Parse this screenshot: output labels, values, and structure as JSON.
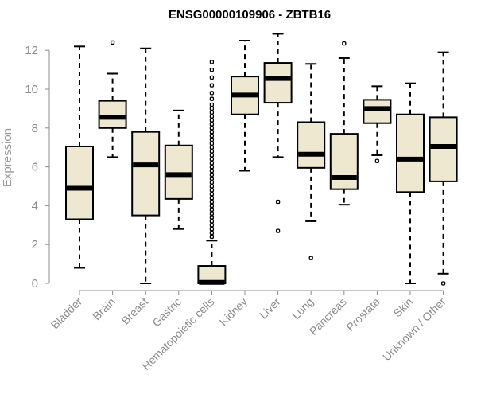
{
  "chart_data": {
    "type": "boxplot",
    "title": "ENSG00000109906 - ZBTB16",
    "xlabel": "",
    "ylabel": "Expression",
    "ylim": [
      0,
      12.5
    ],
    "yticks": [
      0,
      2,
      4,
      6,
      8,
      10,
      12
    ],
    "categories": [
      "Bladder",
      "Brain",
      "Breast",
      "Gastric",
      "Hematopoietic cells",
      "Kidney",
      "Liver",
      "Lung",
      "Pancreas",
      "Prostate",
      "Skin",
      "Unknown / Other"
    ],
    "series": [
      {
        "name": "Bladder",
        "min": 0.8,
        "q1": 3.3,
        "median": 4.9,
        "q3": 7.05,
        "max": 12.2,
        "outliers": []
      },
      {
        "name": "Brain",
        "min": 6.5,
        "q1": 8.0,
        "median": 8.55,
        "q3": 9.4,
        "max": 10.8,
        "outliers": [
          12.4
        ]
      },
      {
        "name": "Breast",
        "min": 0.0,
        "q1": 3.5,
        "median": 6.1,
        "q3": 7.8,
        "max": 12.1,
        "outliers": []
      },
      {
        "name": "Gastric",
        "min": 2.8,
        "q1": 4.35,
        "median": 5.6,
        "q3": 7.1,
        "max": 8.9,
        "outliers": []
      },
      {
        "name": "Hematopoietic cells",
        "min": 0.0,
        "q1": 0.0,
        "median": 0.05,
        "q3": 0.9,
        "max": 2.2,
        "outliers": [
          2.4,
          2.6,
          2.8,
          3.0,
          3.2,
          3.4,
          3.6,
          3.8,
          4.0,
          4.2,
          4.4,
          4.6,
          4.8,
          5.0,
          5.2,
          5.4,
          5.6,
          5.8,
          6.0,
          6.2,
          6.4,
          6.6,
          6.8,
          7.0,
          7.2,
          7.4,
          7.6,
          7.8,
          8.0,
          8.2,
          8.4,
          8.6,
          8.8,
          9.0,
          9.2,
          9.5,
          9.8,
          10.2,
          10.6,
          11.0,
          11.4
        ]
      },
      {
        "name": "Kidney",
        "min": 5.8,
        "q1": 8.7,
        "median": 9.7,
        "q3": 10.65,
        "max": 12.5,
        "outliers": []
      },
      {
        "name": "Liver",
        "min": 6.5,
        "q1": 9.3,
        "median": 10.55,
        "q3": 11.35,
        "max": 12.85,
        "outliers": [
          4.2,
          2.7
        ]
      },
      {
        "name": "Lung",
        "min": 3.2,
        "q1": 5.95,
        "median": 6.65,
        "q3": 8.3,
        "max": 11.3,
        "outliers": [
          1.3
        ]
      },
      {
        "name": "Pancreas",
        "min": 4.05,
        "q1": 4.85,
        "median": 5.45,
        "q3": 7.7,
        "max": 11.6,
        "outliers": [
          12.35
        ]
      },
      {
        "name": "Prostate",
        "min": 6.6,
        "q1": 8.25,
        "median": 9.0,
        "q3": 9.45,
        "max": 10.15,
        "outliers": [
          6.3
        ]
      },
      {
        "name": "Skin",
        "min": 0.0,
        "q1": 4.7,
        "median": 6.4,
        "q3": 8.7,
        "max": 10.3,
        "outliers": []
      },
      {
        "name": "Unknown / Other",
        "min": 0.5,
        "q1": 5.25,
        "median": 7.05,
        "q3": 8.55,
        "max": 11.9,
        "outliers": [
          0.0
        ]
      }
    ]
  }
}
